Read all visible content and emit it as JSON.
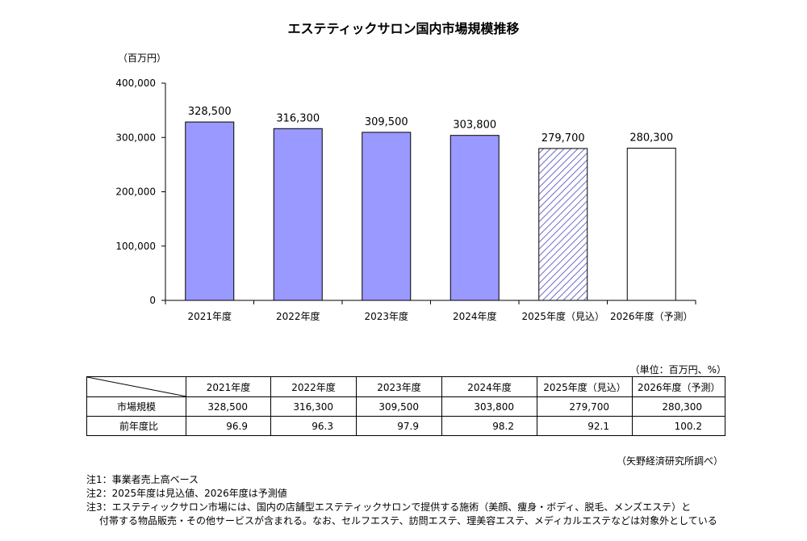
{
  "chart_data": {
    "type": "bar",
    "title": "エステティックサロン国内市場規模推移",
    "ylabel": "（百万円）",
    "ylim": [
      0,
      400000
    ],
    "yticks": [
      "0",
      "100,000",
      "200,000",
      "300,000",
      "400,000"
    ],
    "ytick_values": [
      0,
      100000,
      200000,
      300000,
      400000
    ],
    "categories": [
      "2021年度",
      "2022年度",
      "2023年度",
      "2024年度",
      "2025年度（見込）",
      "2026年度（予測）"
    ],
    "values": [
      328500,
      316300,
      309500,
      303800,
      279700,
      280300
    ],
    "value_labels": [
      "328,500",
      "316,300",
      "309,500",
      "303,800",
      "279,700",
      "280,300"
    ],
    "bar_styles": [
      "solid",
      "solid",
      "solid",
      "solid",
      "hatched",
      "outline"
    ],
    "colors": {
      "bar_fill": "#9999ff",
      "hatch": "#6b6bc8",
      "outline": "#000000"
    },
    "grid": false
  },
  "table": {
    "unit": "（単位：百万円、%）",
    "headers": [
      "2021年度",
      "2022年度",
      "2023年度",
      "2024年度",
      "2025年度（見込）",
      "2026年度（予測）"
    ],
    "rows": [
      {
        "label": "市場規模",
        "values": [
          "328,500",
          "316,300",
          "309,500",
          "303,800",
          "279,700",
          "280,300"
        ]
      },
      {
        "label": "前年度比",
        "values": [
          "96.9",
          "96.3",
          "97.9",
          "98.2",
          "92.1",
          "100.2"
        ]
      }
    ]
  },
  "source": "（矢野経済研究所調べ）",
  "notes": [
    "注1：事業者売上高ベース",
    "注2：2025年度は見込値、2026年度は予測値",
    "注3：エステティックサロン市場には、国内の店舗型エステティックサロンで提供する施術（美顔、痩身・ボディ、脱毛、メンズエステ）と",
    "付帯する物品販売・その他サービスが含まれる。なお、セルフエステ、訪問エステ、理美容エステ、メディカルエステなどは対象外としている"
  ]
}
